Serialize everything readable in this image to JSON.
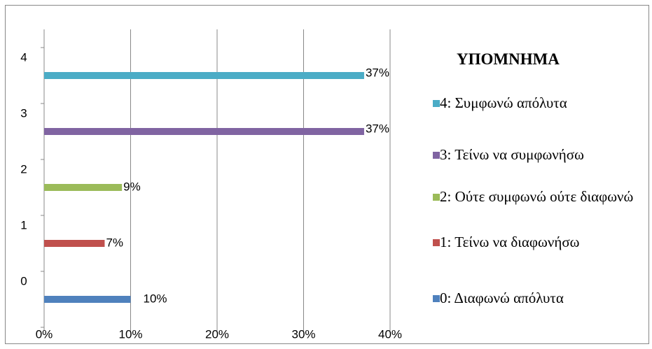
{
  "chart_data": {
    "type": "bar",
    "orientation": "horizontal",
    "categories": [
      "0",
      "1",
      "2",
      "3",
      "4"
    ],
    "values": [
      10,
      7,
      9,
      37,
      37
    ],
    "value_labels": [
      "10%",
      "7%",
      "9%",
      "37%",
      "37%"
    ],
    "colors": [
      "#4f81bd",
      "#c0504d",
      "#9bbb59",
      "#8064a2",
      "#4bacc6"
    ],
    "legend_title": "ΥΠΟΜΝΗΜΑ",
    "legend_labels": [
      "0: Διαφωνώ απόλυτα",
      "1: Τείνω να διαφωνήσω",
      "2: Ούτε συμφωνώ ούτε διαφωνώ",
      "3: Τείνω να συμφωνήσω",
      "4: Συμφωνώ απόλυτα"
    ],
    "xlim": [
      0,
      40
    ],
    "xticks": [
      {
        "value": 0,
        "label": "0%"
      },
      {
        "value": 10,
        "label": "10%"
      },
      {
        "value": 20,
        "label": "20%"
      },
      {
        "value": 30,
        "label": "30%"
      },
      {
        "value": 40,
        "label": "40%"
      }
    ],
    "grid": true
  }
}
